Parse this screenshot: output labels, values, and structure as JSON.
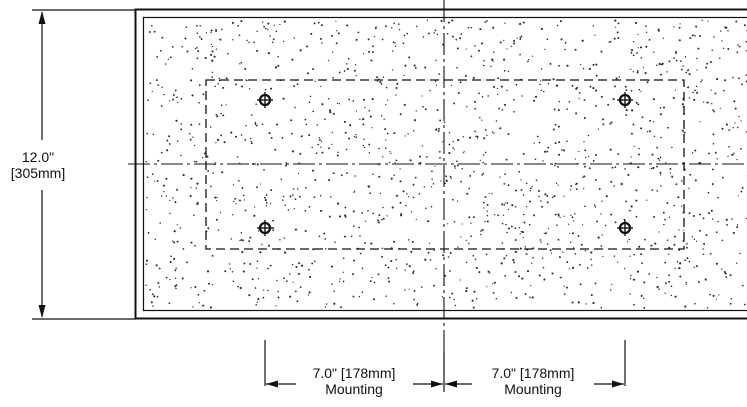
{
  "height_dimension": {
    "imperial": "12.0\"",
    "metric": "[305mm]"
  },
  "left_spacing": {
    "value": "7.0\" [178mm]",
    "caption": "Mounting"
  },
  "right_spacing": {
    "value": "7.0\" [178mm]",
    "caption": "Mounting"
  },
  "colors": {
    "line": "#111111",
    "speckle": "#2a2a2a",
    "background": "#ffffff"
  }
}
